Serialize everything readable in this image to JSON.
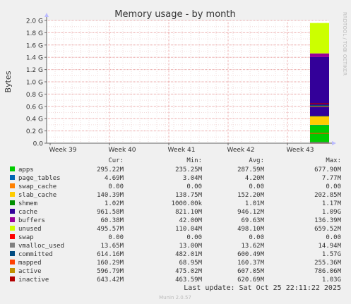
{
  "chart_data": {
    "type": "area",
    "title": "Memory usage - by month",
    "ylabel": "Bytes",
    "xlabel": "",
    "ylim": [
      0,
      2000000000
    ],
    "y_ticks": [
      {
        "value": 0,
        "label": "0.0"
      },
      {
        "value": 200000000,
        "label": "0.2 G"
      },
      {
        "value": 400000000,
        "label": "0.4 G"
      },
      {
        "value": 600000000,
        "label": "0.6 G"
      },
      {
        "value": 800000000,
        "label": "0.8 G"
      },
      {
        "value": 1000000000,
        "label": "1.0 G"
      },
      {
        "value": 1200000000,
        "label": "1.2 G"
      },
      {
        "value": 1400000000,
        "label": "1.4 G"
      },
      {
        "value": 1600000000,
        "label": "1.6 G"
      },
      {
        "value": 1800000000,
        "label": "1.8 G"
      },
      {
        "value": 2000000000,
        "label": "2.0 G"
      }
    ],
    "x_ticks": [
      "Week 39",
      "Week 40",
      "Week 41",
      "Week 42",
      "Week 43"
    ],
    "grid": true,
    "stacked_series": [
      {
        "name": "apps",
        "color": "#00cc00",
        "values": [
          295220000
        ]
      },
      {
        "name": "page_tables",
        "color": "#0066b3",
        "values": [
          4690000
        ]
      },
      {
        "name": "swap_cache",
        "color": "#ff8000",
        "values": [
          0
        ]
      },
      {
        "name": "slab_cache",
        "color": "#ffcc00",
        "values": [
          140390000
        ]
      },
      {
        "name": "shmem",
        "color": "#008f00",
        "values": [
          1020000
        ]
      },
      {
        "name": "cache",
        "color": "#330099",
        "values": [
          961580000
        ]
      },
      {
        "name": "buffers",
        "color": "#990099",
        "values": [
          60380000
        ]
      },
      {
        "name": "unused",
        "color": "#ccff00",
        "values": [
          495570000
        ]
      }
    ],
    "line_series": [
      {
        "name": "swap",
        "color": "#ff0000",
        "values": [
          0
        ]
      },
      {
        "name": "vmalloc_used",
        "color": "#808080",
        "values": [
          13650000
        ]
      },
      {
        "name": "committed",
        "color": "#004b80",
        "values": [
          614160000
        ]
      },
      {
        "name": "mapped",
        "color": "#ff4000",
        "values": [
          160290000
        ]
      },
      {
        "name": "active",
        "color": "#c09000",
        "values": [
          596790000
        ]
      },
      {
        "name": "inactive",
        "color": "#b30000",
        "values": [
          643420000
        ]
      }
    ]
  },
  "legend": {
    "headers": {
      "cur": "Cur:",
      "min": "Min:",
      "avg": "Avg:",
      "max": "Max:"
    },
    "rows": [
      {
        "name": "apps",
        "color": "#00cc00",
        "cur": "295.22M",
        "min": "235.25M",
        "avg": "287.59M",
        "max": "677.90M"
      },
      {
        "name": "page_tables",
        "color": "#0066b3",
        "cur": "4.69M",
        "min": "3.04M",
        "avg": "4.20M",
        "max": "7.77M"
      },
      {
        "name": "swap_cache",
        "color": "#ff8000",
        "cur": "0.00",
        "min": "0.00",
        "avg": "0.00",
        "max": "0.00"
      },
      {
        "name": "slab_cache",
        "color": "#ffcc00",
        "cur": "140.39M",
        "min": "138.75M",
        "avg": "152.20M",
        "max": "202.85M"
      },
      {
        "name": "shmem",
        "color": "#008f00",
        "cur": "1.02M",
        "min": "1000.00k",
        "avg": "1.01M",
        "max": "1.17M"
      },
      {
        "name": "cache",
        "color": "#330099",
        "cur": "961.58M",
        "min": "821.10M",
        "avg": "946.12M",
        "max": "1.09G"
      },
      {
        "name": "buffers",
        "color": "#990099",
        "cur": "60.38M",
        "min": "42.00M",
        "avg": "69.63M",
        "max": "136.39M"
      },
      {
        "name": "unused",
        "color": "#ccff00",
        "cur": "495.57M",
        "min": "110.04M",
        "avg": "498.10M",
        "max": "659.52M"
      },
      {
        "name": "swap",
        "color": "#ff0000",
        "cur": "0.00",
        "min": "0.00",
        "avg": "0.00",
        "max": "0.00"
      },
      {
        "name": "vmalloc_used",
        "color": "#808080",
        "cur": "13.65M",
        "min": "13.00M",
        "avg": "13.62M",
        "max": "14.94M"
      },
      {
        "name": "committed",
        "color": "#004b80",
        "cur": "614.16M",
        "min": "482.01M",
        "avg": "600.49M",
        "max": "1.57G"
      },
      {
        "name": "mapped",
        "color": "#ff4000",
        "cur": "160.29M",
        "min": "68.95M",
        "avg": "160.37M",
        "max": "255.36M"
      },
      {
        "name": "active",
        "color": "#c09000",
        "cur": "596.79M",
        "min": "475.02M",
        "avg": "607.05M",
        "max": "786.06M"
      },
      {
        "name": "inactive",
        "color": "#b30000",
        "cur": "643.42M",
        "min": "463.59M",
        "avg": "620.69M",
        "max": "1.03G"
      }
    ]
  },
  "footer": {
    "last_update": "Last update: Sat Oct 25 22:11:22 2025",
    "version": "Munin 2.0.57"
  },
  "watermark": "RRDTOOL / TOBI OETIKER"
}
